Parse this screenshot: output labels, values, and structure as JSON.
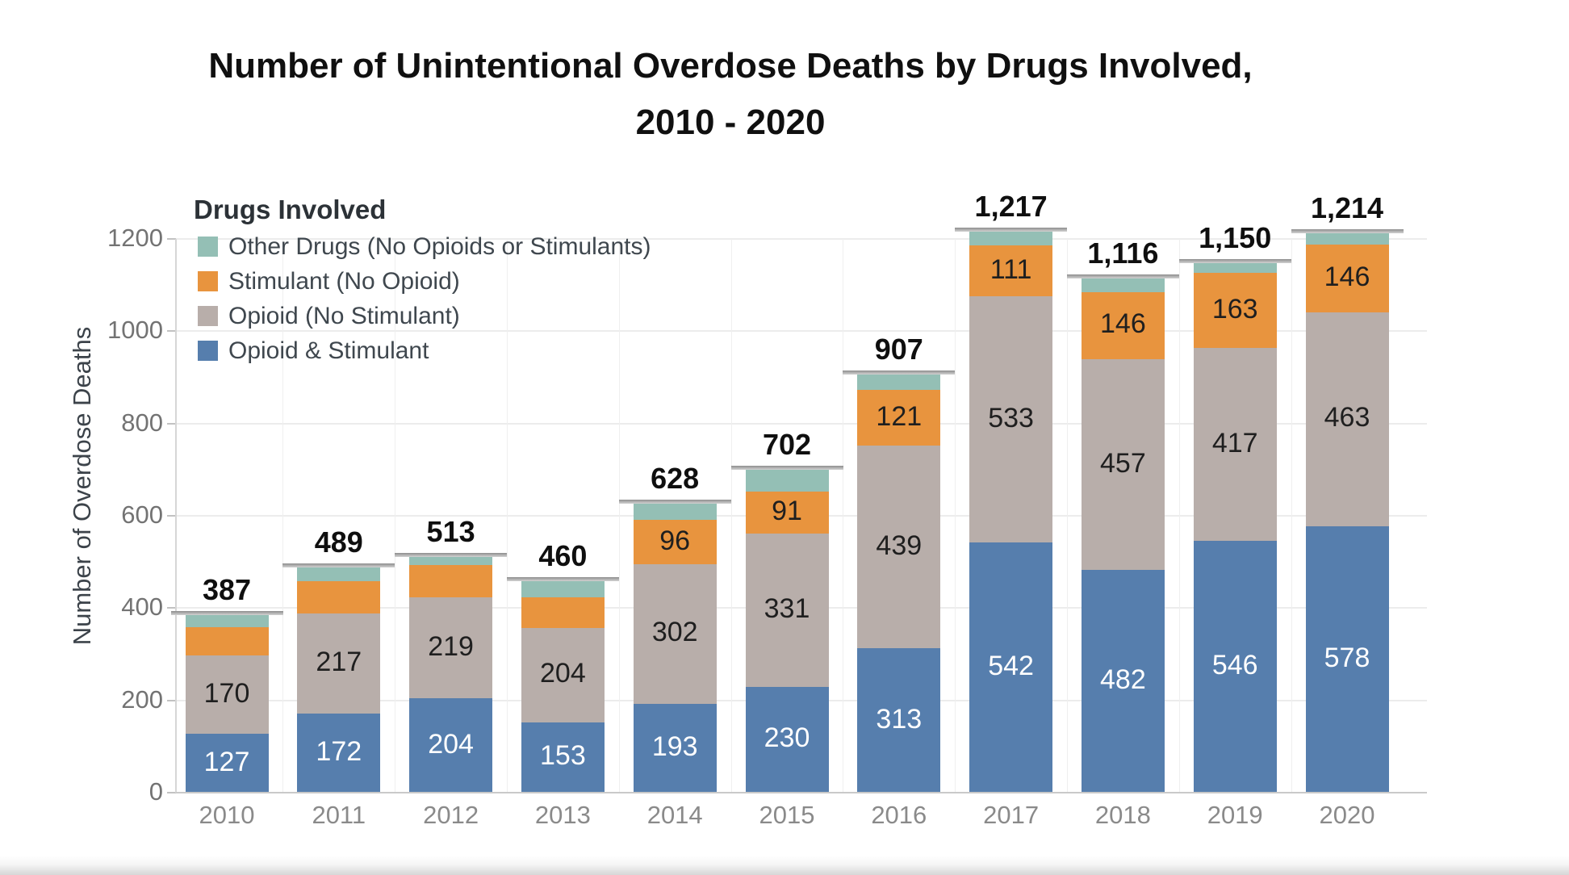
{
  "title": {
    "line1": "Number of Unintentional Overdose Deaths by Drugs Involved,",
    "line2": "2010 - 2020"
  },
  "y_axis": {
    "title": "Number of Overdose Deaths",
    "tick_values": [
      0,
      200,
      400,
      600,
      800,
      1000,
      1200
    ],
    "max": 1200
  },
  "legend": {
    "header": "Drugs Involved",
    "items": [
      {
        "label": "Other Drugs (No Opioids or Stimulants)",
        "color": "#94bfb5"
      },
      {
        "label": "Stimulant (No Opioid)",
        "color": "#e8943e"
      },
      {
        "label": "Opioid (No Stimulant)",
        "color": "#b8aeaa"
      },
      {
        "label": "Opioid & Stimulant",
        "color": "#567ead"
      }
    ]
  },
  "chart_data": {
    "type": "bar",
    "subtype": "stacked-vertical",
    "title": "Number of Unintentional Overdose Deaths by Drugs Involved, 2010 - 2020",
    "xlabel": "",
    "ylabel": "Number of Overdose Deaths",
    "ylim": [
      0,
      1200
    ],
    "grid": "horizontal-light",
    "legend_position": "top-left-inside",
    "categories": [
      "2010",
      "2011",
      "2012",
      "2013",
      "2014",
      "2015",
      "2016",
      "2017",
      "2018",
      "2019",
      "2020"
    ],
    "series": [
      {
        "name": "Opioid & Stimulant",
        "color": "#567ead",
        "label_color": "#ffffff",
        "values": [
          127,
          172,
          204,
          153,
          193,
          230,
          313,
          542,
          482,
          546,
          578
        ],
        "labels": [
          "127",
          "172",
          "204",
          "153",
          "193",
          "230",
          "313",
          "542",
          "482",
          "546",
          "578"
        ]
      },
      {
        "name": "Opioid (No Stimulant)",
        "color": "#b8aeaa",
        "label_color": "#1f1f1f",
        "values": [
          170,
          217,
          219,
          204,
          302,
          331,
          439,
          533,
          457,
          417,
          463
        ],
        "labels": [
          "170",
          "217",
          "219",
          "204",
          "302",
          "331",
          "439",
          "533",
          "457",
          "417",
          "463"
        ]
      },
      {
        "name": "Stimulant (No Opioid)",
        "color": "#e8943e",
        "label_color": "#1f1f1f",
        "values": [
          62,
          70,
          70,
          66,
          96,
          91,
          121,
          111,
          146,
          163,
          146
        ],
        "labels": [
          null,
          null,
          null,
          null,
          "96",
          "91",
          "121",
          "111",
          "146",
          "163",
          "146"
        ]
      },
      {
        "name": "Other Drugs (No Opioids or Stimulants)",
        "color": "#94bfb5",
        "label_color": "#1f1f1f",
        "values": [
          28,
          30,
          20,
          37,
          37,
          50,
          34,
          31,
          31,
          24,
          27
        ],
        "labels": [
          null,
          null,
          null,
          null,
          null,
          null,
          null,
          null,
          null,
          null,
          null
        ]
      }
    ],
    "totals": [
      387,
      489,
      513,
      460,
      628,
      702,
      907,
      1217,
      1116,
      1150,
      1214
    ],
    "total_labels": [
      "387",
      "489",
      "513",
      "460",
      "628",
      "702",
      "907",
      "1,217",
      "1,116",
      "1,150",
      "1,214"
    ],
    "total_marker_color": "#a2a2a2"
  }
}
